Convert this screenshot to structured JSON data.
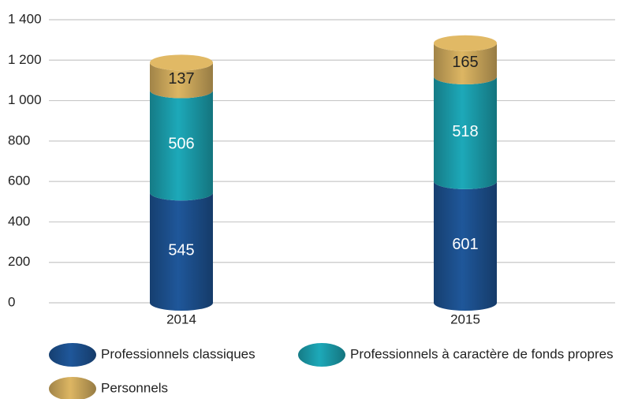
{
  "chart_data": {
    "type": "stacked-bar",
    "categories": [
      "2014",
      "2015"
    ],
    "series": [
      {
        "name": "Professionnels classiques",
        "color": "#1c4f8c",
        "values": [
          545,
          601
        ]
      },
      {
        "name": "Professionnels à caractère de fonds propres",
        "color": "#1a9aa8",
        "values": [
          506,
          518
        ]
      },
      {
        "name": "Personnels",
        "color": "#c9a55a",
        "values": [
          137,
          165
        ]
      }
    ],
    "ylim": [
      0,
      1400
    ],
    "yticks": [
      0,
      200,
      400,
      600,
      800,
      {
        "value": 1000,
        "label": "1 000"
      },
      {
        "value": 1200,
        "label": "1 200"
      },
      {
        "value": 1400,
        "label": "1 400"
      }
    ],
    "grid": true,
    "legend": "bottom"
  }
}
